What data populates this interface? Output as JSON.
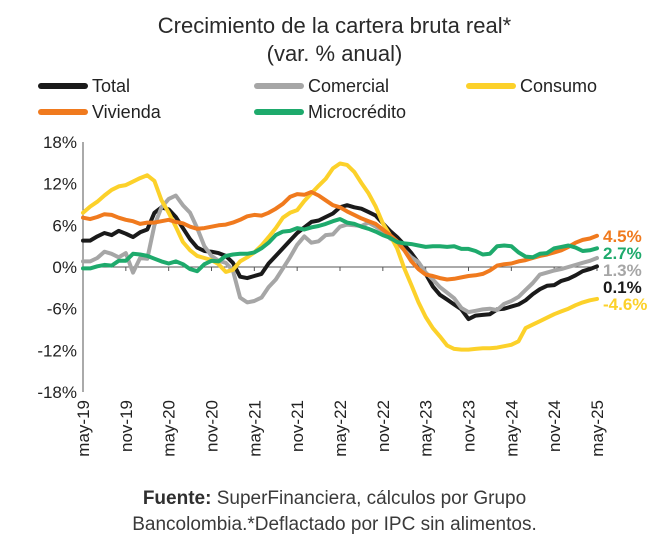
{
  "title_line1": "Crecimiento de la cartera bruta real*",
  "title_line2": "(var. % anual)",
  "source_label": "Fuente:",
  "source_text_line1": " SuperFinanciera, cálculos por Grupo",
  "source_text_line2": "Bancolombia.*Deflactado por IPC sin alimentos.",
  "chart_data": {
    "type": "line",
    "ylim": [
      -18,
      18
    ],
    "yticks": [
      18,
      12,
      6,
      0,
      -6,
      -12,
      -18
    ],
    "ytick_labels": [
      "18%",
      "12%",
      "6%",
      "0%",
      "-6%",
      "-12%",
      "-18%"
    ],
    "xtick_labels": [
      "may-19",
      "nov-19",
      "may-20",
      "nov-20",
      "may-21",
      "nov-21",
      "may-22",
      "nov-22",
      "may-23",
      "nov-23",
      "may-24",
      "nov-24",
      "may-25"
    ],
    "legend_position": "top",
    "grid": false,
    "x": [
      "may-19",
      "jun-19",
      "jul-19",
      "ago-19",
      "sep-19",
      "oct-19",
      "nov-19",
      "dic-19",
      "ene-20",
      "feb-20",
      "mar-20",
      "abr-20",
      "may-20",
      "jun-20",
      "jul-20",
      "ago-20",
      "sep-20",
      "oct-20",
      "nov-20",
      "dic-20",
      "ene-21",
      "feb-21",
      "mar-21",
      "abr-21",
      "may-21",
      "jun-21",
      "jul-21",
      "ago-21",
      "sep-21",
      "oct-21",
      "nov-21",
      "dic-21",
      "ene-22",
      "feb-22",
      "mar-22",
      "abr-22",
      "may-22",
      "jun-22",
      "jul-22",
      "ago-22",
      "sep-22",
      "oct-22",
      "nov-22",
      "dic-22",
      "ene-23",
      "feb-23",
      "mar-23",
      "abr-23",
      "may-23",
      "jun-23",
      "jul-23",
      "ago-23",
      "sep-23",
      "oct-23",
      "nov-23",
      "dic-23",
      "ene-24",
      "feb-24",
      "mar-24",
      "abr-24",
      "may-24",
      "jun-24",
      "jul-24",
      "ago-24",
      "sep-24",
      "oct-24",
      "nov-24",
      "dic-24",
      "ene-25",
      "feb-25",
      "mar-25",
      "abr-25",
      "may-25"
    ],
    "series": [
      {
        "name": "Total",
        "color": "#1a1a1a",
        "end_label": "0.1%",
        "values": [
          3.8,
          3.8,
          4.4,
          4.9,
          4.6,
          5.2,
          4.8,
          4.3,
          5.0,
          5.4,
          7.8,
          8.6,
          8.3,
          7.2,
          5.6,
          4.0,
          2.8,
          2.3,
          2.2,
          2.0,
          1.6,
          0.6,
          -1.4,
          -1.6,
          -1.3,
          -1.0,
          0.5,
          1.6,
          2.7,
          3.8,
          4.9,
          5.7,
          6.5,
          6.7,
          7.2,
          7.7,
          8.6,
          8.9,
          8.6,
          8.4,
          7.9,
          7.4,
          6.3,
          5.2,
          4.3,
          3.2,
          2.0,
          0.6,
          -1.0,
          -2.8,
          -4.0,
          -4.7,
          -5.4,
          -6.1,
          -7.5,
          -7.0,
          -6.9,
          -6.8,
          -6.1,
          -6.0,
          -5.7,
          -5.4,
          -4.8,
          -3.9,
          -3.2,
          -2.7,
          -2.6,
          -2.0,
          -1.7,
          -1.2,
          -0.6,
          -0.3,
          0.1
        ]
      },
      {
        "name": "Comercial",
        "color": "#a6a6a6",
        "end_label": "1.3%",
        "values": [
          0.8,
          0.8,
          1.3,
          2.2,
          1.9,
          1.4,
          2.0,
          -0.8,
          1.3,
          1.2,
          6.0,
          8.6,
          9.8,
          10.3,
          8.9,
          7.8,
          5.6,
          3.0,
          1.6,
          0.9,
          0.6,
          -0.5,
          -4.4,
          -5.1,
          -4.9,
          -4.4,
          -2.9,
          -1.8,
          -0.2,
          1.4,
          3.2,
          4.4,
          3.5,
          3.7,
          4.6,
          4.7,
          5.8,
          6.1,
          6.0,
          5.9,
          6.4,
          5.8,
          5.2,
          4.1,
          3.5,
          2.4,
          1.4,
          0.7,
          -0.8,
          -1.8,
          -2.9,
          -3.7,
          -4.5,
          -5.9,
          -6.5,
          -6.3,
          -6.1,
          -6.0,
          -6.2,
          -5.3,
          -4.9,
          -4.3,
          -3.3,
          -2.3,
          -1.1,
          -0.8,
          -0.5,
          -0.3,
          0.0,
          0.3,
          0.6,
          0.9,
          1.3
        ]
      },
      {
        "name": "Consumo",
        "color": "#fcd12a",
        "end_label": "-4.6%",
        "values": [
          7.8,
          8.7,
          9.4,
          10.3,
          11.1,
          11.6,
          11.8,
          12.3,
          12.8,
          13.2,
          12.4,
          9.6,
          7.8,
          5.8,
          3.6,
          2.4,
          1.6,
          1.3,
          1.0,
          0.4,
          -0.7,
          -0.4,
          0.8,
          1.4,
          2.1,
          3.1,
          4.3,
          5.6,
          7.1,
          7.8,
          8.2,
          9.5,
          10.6,
          11.7,
          12.7,
          14.2,
          14.9,
          14.7,
          13.7,
          12.1,
          10.6,
          8.7,
          6.3,
          4.6,
          2.7,
          -0.2,
          -2.6,
          -5.1,
          -7.2,
          -8.8,
          -10.0,
          -11.3,
          -11.8,
          -11.9,
          -11.9,
          -11.8,
          -11.7,
          -11.7,
          -11.6,
          -11.4,
          -11.2,
          -10.7,
          -8.8,
          -8.3,
          -7.8,
          -7.3,
          -6.8,
          -6.4,
          -6.0,
          -5.5,
          -5.1,
          -4.8,
          -4.6
        ]
      },
      {
        "name": "Vivienda",
        "color": "#f07a1e",
        "end_label": "4.5%",
        "values": [
          7.1,
          6.9,
          7.2,
          7.6,
          7.5,
          7.1,
          6.8,
          6.6,
          6.2,
          6.4,
          6.4,
          6.6,
          6.8,
          6.5,
          6.3,
          5.8,
          5.5,
          5.6,
          5.8,
          6.0,
          6.1,
          6.4,
          6.8,
          7.3,
          7.5,
          7.4,
          7.8,
          8.4,
          9.1,
          10.1,
          10.5,
          10.4,
          10.8,
          10.3,
          9.6,
          8.9,
          8.6,
          8.0,
          7.5,
          7.0,
          6.6,
          6.2,
          5.4,
          4.6,
          3.7,
          2.4,
          0.8,
          -0.3,
          -1.1,
          -1.3,
          -1.6,
          -1.8,
          -1.7,
          -1.5,
          -1.3,
          -1.2,
          -1.0,
          -0.5,
          0.2,
          0.4,
          0.5,
          0.8,
          1.0,
          1.3,
          1.6,
          1.8,
          2.1,
          2.4,
          2.9,
          3.5,
          3.9,
          4.1,
          4.5
        ]
      },
      {
        "name": "Microcrédito",
        "color": "#1eaa6c",
        "end_label": "2.7%",
        "values": [
          -0.2,
          -0.2,
          0.1,
          0.3,
          0.2,
          0.9,
          0.9,
          1.9,
          1.8,
          1.6,
          1.2,
          0.8,
          0.5,
          0.8,
          0.4,
          -0.3,
          -0.6,
          0.4,
          0.9,
          0.8,
          1.6,
          1.8,
          1.9,
          1.9,
          2.1,
          2.7,
          3.5,
          4.6,
          5.1,
          5.2,
          5.6,
          5.4,
          5.7,
          5.9,
          6.2,
          6.6,
          6.9,
          6.4,
          6.2,
          5.8,
          5.5,
          5.1,
          4.6,
          4.2,
          3.6,
          3.4,
          3.3,
          3.1,
          2.9,
          3.0,
          3.0,
          2.9,
          3.0,
          2.6,
          2.6,
          2.3,
          1.8,
          1.9,
          3.0,
          3.1,
          3.0,
          2.1,
          1.5,
          1.4,
          1.9,
          2.0,
          2.7,
          2.9,
          3.1,
          2.8,
          2.3,
          2.4,
          2.7
        ]
      }
    ]
  }
}
